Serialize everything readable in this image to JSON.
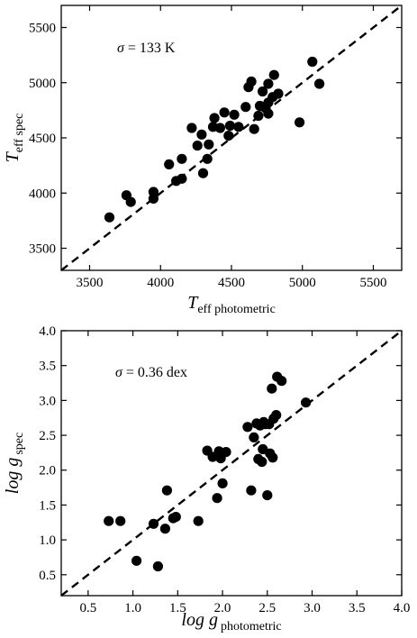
{
  "chart_data": [
    {
      "type": "scatter",
      "xlabel_main": "T",
      "xlabel_sub": "eff photometric",
      "ylabel_main": "T",
      "ylabel_sub": "eff spec",
      "annotation_symbol": "σ",
      "annotation_text": " = 133 K",
      "xlim": [
        3300,
        5700
      ],
      "ylim": [
        3300,
        5700
      ],
      "xticks": [
        3500,
        4000,
        4500,
        5000,
        5500
      ],
      "yticks": [
        3500,
        4000,
        4500,
        5000,
        5500
      ],
      "xtick_labels": [
        "3500",
        "4000",
        "4500",
        "5000",
        "5500"
      ],
      "ytick_labels": [
        "3500",
        "4000",
        "4500",
        "5000",
        "5500"
      ],
      "reference_line": "y = x (dashed)",
      "grid": false,
      "marker_color": "#000000",
      "points": [
        [
          3640,
          3780
        ],
        [
          3760,
          3980
        ],
        [
          3790,
          3920
        ],
        [
          3950,
          3950
        ],
        [
          3950,
          4010
        ],
        [
          4060,
          4260
        ],
        [
          4110,
          4110
        ],
        [
          4150,
          4130
        ],
        [
          4150,
          4310
        ],
        [
          4220,
          4590
        ],
        [
          4260,
          4430
        ],
        [
          4290,
          4530
        ],
        [
          4300,
          4180
        ],
        [
          4330,
          4310
        ],
        [
          4340,
          4440
        ],
        [
          4370,
          4600
        ],
        [
          4380,
          4680
        ],
        [
          4420,
          4590
        ],
        [
          4450,
          4730
        ],
        [
          4480,
          4520
        ],
        [
          4490,
          4610
        ],
        [
          4520,
          4710
        ],
        [
          4550,
          4600
        ],
        [
          4600,
          4780
        ],
        [
          4620,
          4960
        ],
        [
          4640,
          5010
        ],
        [
          4660,
          4580
        ],
        [
          4690,
          4700
        ],
        [
          4700,
          4790
        ],
        [
          4720,
          4920
        ],
        [
          4740,
          4770
        ],
        [
          4760,
          4720
        ],
        [
          4760,
          4820
        ],
        [
          4760,
          4990
        ],
        [
          4790,
          4870
        ],
        [
          4800,
          5070
        ],
        [
          4830,
          4900
        ],
        [
          4980,
          4640
        ],
        [
          5070,
          5190
        ],
        [
          5120,
          4990
        ]
      ]
    },
    {
      "type": "scatter",
      "xlabel_main": "log g",
      "xlabel_sub": "photometric",
      "ylabel_main": "log g",
      "ylabel_sub": "spec",
      "annotation_symbol": "σ",
      "annotation_text": " = 0.36 dex",
      "xlim": [
        0.2,
        4.0
      ],
      "ylim": [
        0.2,
        4.0
      ],
      "xticks": [
        0.5,
        1.0,
        1.5,
        2.0,
        2.5,
        3.0,
        3.5,
        4.0
      ],
      "yticks": [
        0.5,
        1.0,
        1.5,
        2.0,
        2.5,
        3.0,
        3.5,
        4.0
      ],
      "xtick_labels": [
        "0.5",
        "1.0",
        "1.5",
        "2.0",
        "2.5",
        "3.0",
        "3.5",
        "4.0"
      ],
      "ytick_labels": [
        "0.5",
        "1.0",
        "1.5",
        "2.0",
        "2.5",
        "3.0",
        "3.5",
        "4.0"
      ],
      "reference_line": "y = x (dashed)",
      "grid": false,
      "marker_color": "#000000",
      "points": [
        [
          0.73,
          1.27
        ],
        [
          0.86,
          1.27
        ],
        [
          1.04,
          0.7
        ],
        [
          1.23,
          1.23
        ],
        [
          1.28,
          0.62
        ],
        [
          1.36,
          1.16
        ],
        [
          1.38,
          1.71
        ],
        [
          1.45,
          1.31
        ],
        [
          1.48,
          1.33
        ],
        [
          1.73,
          1.27
        ],
        [
          1.83,
          2.28
        ],
        [
          1.89,
          2.19
        ],
        [
          1.94,
          1.6
        ],
        [
          1.96,
          2.27
        ],
        [
          1.98,
          2.17
        ],
        [
          2.0,
          1.81
        ],
        [
          2.04,
          2.26
        ],
        [
          2.28,
          2.62
        ],
        [
          2.32,
          1.71
        ],
        [
          2.35,
          2.47
        ],
        [
          2.38,
          2.67
        ],
        [
          2.4,
          2.16
        ],
        [
          2.42,
          2.64
        ],
        [
          2.44,
          2.12
        ],
        [
          2.45,
          2.3
        ],
        [
          2.46,
          2.69
        ],
        [
          2.48,
          2.66
        ],
        [
          2.5,
          1.64
        ],
        [
          2.52,
          2.66
        ],
        [
          2.53,
          2.24
        ],
        [
          2.55,
          3.17
        ],
        [
          2.56,
          2.18
        ],
        [
          2.57,
          2.74
        ],
        [
          2.6,
          2.79
        ],
        [
          2.61,
          3.34
        ],
        [
          2.66,
          3.28
        ],
        [
          2.93,
          2.97
        ]
      ]
    }
  ]
}
